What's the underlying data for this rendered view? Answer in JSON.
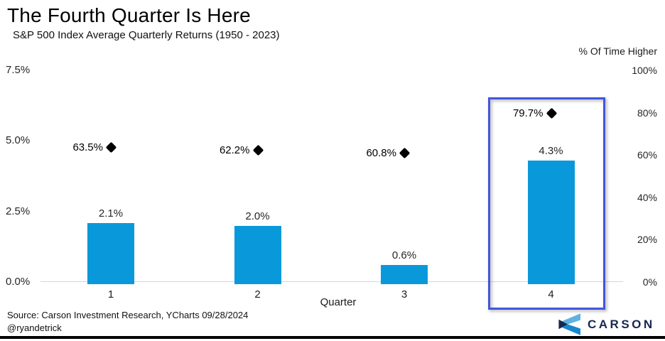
{
  "title": "The Fourth Quarter Is Here",
  "subtitle": "S&P 500 Index Average Quarterly Returns (1950 - 2023)",
  "right_axis_title": "% Of Time Higher",
  "source_line1": "Source: Carson Investment Research, YCharts 09/28/2024",
  "source_line2": "@ryandetrick",
  "logo_text": "CARSON",
  "colors": {
    "bar": "#0999db",
    "diamond": "#000000",
    "highlight_border": "#4355e0",
    "axis_line": "#d6d6d6",
    "logo_navy": "#16294d",
    "logo_light_blue": "#5fb2e3",
    "logo_blue": "#1887d0"
  },
  "chart_data": {
    "type": "bar",
    "title": "The Fourth Quarter Is Here",
    "subtitle": "S&P 500 Index Average Quarterly Returns (1950 - 2023)",
    "categories": [
      "1",
      "2",
      "3",
      "4"
    ],
    "xlabel": "Quarter",
    "series": [
      {
        "name": "Average Quarterly Return",
        "axis": "left",
        "unit": "%",
        "values": [
          2.1,
          2.0,
          0.6,
          4.3
        ],
        "labels": [
          "2.1%",
          "2.0%",
          "0.6%",
          "4.3%"
        ],
        "style": "bar"
      },
      {
        "name": "% Of Time Higher",
        "axis": "right",
        "unit": "%",
        "values": [
          63.5,
          62.2,
          60.8,
          79.7
        ],
        "labels": [
          "63.5%",
          "62.2%",
          "60.8%",
          "79.7%"
        ],
        "style": "diamond-marker"
      }
    ],
    "left_axis": {
      "ticks": [
        "7.5%",
        "5.0%",
        "2.5%",
        "0.0%"
      ],
      "tick_values": [
        7.5,
        5.0,
        2.5,
        0.0
      ],
      "range": [
        0,
        7.5
      ]
    },
    "right_axis": {
      "title": "% Of Time Higher",
      "ticks": [
        "100%",
        "80%",
        "60%",
        "40%",
        "20%",
        "0%"
      ],
      "tick_values": [
        100,
        80,
        60,
        40,
        20,
        0
      ],
      "range": [
        0,
        100
      ]
    },
    "grid": "zero-line-only",
    "legend": "none",
    "highlighted_category": "4"
  }
}
